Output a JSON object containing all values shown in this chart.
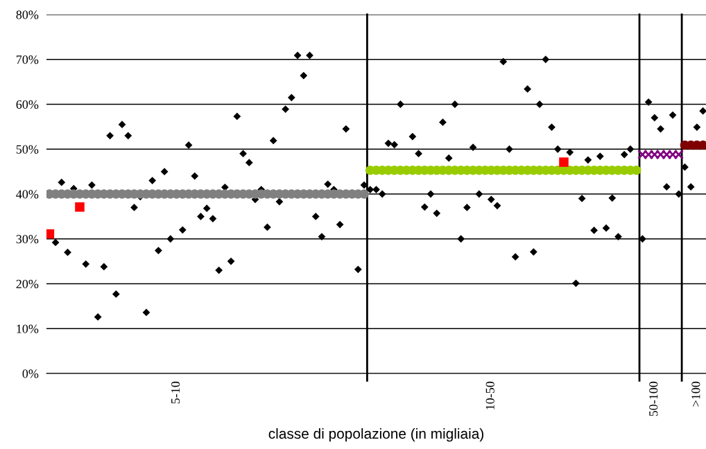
{
  "chart_data": {
    "type": "scatter",
    "xlabel": "classe di popolazione (in migliaia)",
    "categories": [
      null,
      null,
      null,
      null,
      null,
      null,
      null,
      null,
      null,
      null,
      null,
      null,
      null,
      null,
      null,
      null,
      null,
      null,
      null,
      null,
      null,
      "5-10",
      null,
      null,
      null,
      null,
      null,
      null,
      null,
      null,
      null,
      null,
      null,
      null,
      null,
      null,
      null,
      null,
      null,
      null,
      null,
      null,
      null,
      null,
      null,
      null,
      null,
      null,
      null,
      null,
      null,
      null,
      null,
      null,
      null,
      null,
      null,
      null,
      null,
      null,
      null,
      null,
      null,
      null,
      null,
      null,
      null,
      null,
      null,
      null,
      null,
      null,
      null,
      "10-50",
      null,
      null,
      null,
      null,
      null,
      null,
      null,
      null,
      null,
      null,
      null,
      null,
      null,
      null,
      null,
      null,
      null,
      null,
      null,
      null,
      null,
      null,
      null,
      null,
      null,
      null,
      "50-100",
      null,
      null,
      null,
      null,
      null,
      null,
      ">100",
      null
    ],
    "ylim": [
      0,
      80
    ],
    "yticks": [
      {
        "value": 0,
        "label": "0%"
      },
      {
        "value": 10,
        "label": "10%"
      },
      {
        "value": 20,
        "label": "20%"
      },
      {
        "value": 30,
        "label": "30%"
      },
      {
        "value": 40,
        "label": "40%"
      },
      {
        "value": 50,
        "label": "50%"
      },
      {
        "value": 60,
        "label": "60%"
      },
      {
        "value": 70,
        "label": "70%"
      },
      {
        "value": 80,
        "label": "80%"
      }
    ],
    "grid": "y",
    "series": [
      {
        "color": "#808080",
        "marker": "circle",
        "values": [
          40,
          40,
          40,
          40,
          40,
          40,
          40,
          40,
          40,
          40,
          40,
          40,
          40,
          40,
          40,
          40,
          40,
          40,
          40,
          40,
          40,
          40,
          40,
          40,
          40,
          40,
          40,
          40,
          40,
          40,
          40,
          40,
          40,
          40,
          40,
          40,
          40,
          40,
          40,
          40,
          40,
          40,
          40,
          40,
          40,
          40,
          40,
          40,
          40,
          40,
          40,
          40,
          40,
          null,
          null,
          null,
          null,
          null,
          null,
          null,
          null,
          null,
          null,
          null,
          null,
          null,
          null,
          null,
          null,
          null,
          null,
          null,
          null,
          null,
          null,
          null,
          null,
          null,
          null,
          null,
          null,
          null,
          null,
          null,
          null,
          null,
          null,
          null,
          null,
          null,
          null,
          null,
          null,
          null,
          null,
          null,
          null,
          null,
          null,
          null,
          null,
          null,
          null,
          null,
          null,
          null,
          null,
          null,
          null
        ]
      },
      {
        "color": "#99cc00",
        "marker": "circle",
        "values": [
          null,
          null,
          null,
          null,
          null,
          null,
          null,
          null,
          null,
          null,
          null,
          null,
          null,
          null,
          null,
          null,
          null,
          null,
          null,
          null,
          null,
          null,
          null,
          null,
          null,
          null,
          null,
          null,
          null,
          null,
          null,
          null,
          null,
          null,
          null,
          null,
          null,
          null,
          null,
          null,
          null,
          null,
          null,
          null,
          null,
          null,
          null,
          null,
          null,
          null,
          null,
          null,
          null,
          45.3,
          45.3,
          45.3,
          45.3,
          45.3,
          45.3,
          45.3,
          45.3,
          45.3,
          45.3,
          45.3,
          45.3,
          45.3,
          45.3,
          45.3,
          45.3,
          45.3,
          45.3,
          45.3,
          45.3,
          45.3,
          45.3,
          45.3,
          45.3,
          45.3,
          45.3,
          45.3,
          45.3,
          45.3,
          45.3,
          45.3,
          45.3,
          45.3,
          45.3,
          45.3,
          45.3,
          45.3,
          45.3,
          45.3,
          45.3,
          45.3,
          45.3,
          45.3,
          45.3,
          45.3,
          null,
          null,
          null,
          null,
          null,
          null,
          null,
          null,
          null,
          null,
          null
        ]
      },
      {
        "color": "#800080",
        "marker": "cross",
        "values": [
          null,
          null,
          null,
          null,
          null,
          null,
          null,
          null,
          null,
          null,
          null,
          null,
          null,
          null,
          null,
          null,
          null,
          null,
          null,
          null,
          null,
          null,
          null,
          null,
          null,
          null,
          null,
          null,
          null,
          null,
          null,
          null,
          null,
          null,
          null,
          null,
          null,
          null,
          null,
          null,
          null,
          null,
          null,
          null,
          null,
          null,
          null,
          null,
          null,
          null,
          null,
          null,
          null,
          null,
          null,
          null,
          null,
          null,
          null,
          null,
          null,
          null,
          null,
          null,
          null,
          null,
          null,
          null,
          null,
          null,
          null,
          null,
          null,
          null,
          null,
          null,
          null,
          null,
          null,
          null,
          null,
          null,
          null,
          null,
          null,
          null,
          null,
          null,
          null,
          null,
          null,
          null,
          null,
          null,
          null,
          null,
          null,
          null,
          48.8,
          48.8,
          48.8,
          48.8,
          48.8,
          48.8,
          48.8,
          null,
          null,
          null,
          null
        ]
      },
      {
        "color": "#800000",
        "marker": "circle",
        "values": [
          null,
          null,
          null,
          null,
          null,
          null,
          null,
          null,
          null,
          null,
          null,
          null,
          null,
          null,
          null,
          null,
          null,
          null,
          null,
          null,
          null,
          null,
          null,
          null,
          null,
          null,
          null,
          null,
          null,
          null,
          null,
          null,
          null,
          null,
          null,
          null,
          null,
          null,
          null,
          null,
          null,
          null,
          null,
          null,
          null,
          null,
          null,
          null,
          null,
          null,
          null,
          null,
          null,
          null,
          null,
          null,
          null,
          null,
          null,
          null,
          null,
          null,
          null,
          null,
          null,
          null,
          null,
          null,
          null,
          null,
          null,
          null,
          null,
          null,
          null,
          null,
          null,
          null,
          null,
          null,
          null,
          null,
          null,
          null,
          null,
          null,
          null,
          null,
          null,
          null,
          null,
          null,
          null,
          null,
          null,
          null,
          null,
          null,
          null,
          null,
          null,
          null,
          null,
          null,
          null,
          50.9,
          50.9,
          50.9,
          50.9
        ]
      },
      {
        "color": "#000000",
        "marker": "diamond",
        "values": [
          null,
          29.2,
          42.6,
          27.0,
          41.2,
          null,
          24.4,
          42.0,
          12.6,
          23.8,
          53.0,
          17.7,
          55.5,
          53.0,
          37.0,
          39.4,
          13.6,
          43.0,
          27.4,
          45.0,
          30.0,
          null,
          32.0,
          50.9,
          44.0,
          35.0,
          36.8,
          34.5,
          23.0,
          41.5,
          25.0,
          57.3,
          49.0,
          47.0,
          38.8,
          41.0,
          32.6,
          51.9,
          38.3,
          58.9,
          61.5,
          70.9,
          66.4,
          70.9,
          35.0,
          30.5,
          42.2,
          41.0,
          33.2,
          54.5,
          null,
          23.2,
          42.0,
          41.0,
          41.0,
          40.0,
          51.3,
          51.0,
          60.0,
          null,
          52.8,
          49.0,
          37.1,
          40.0,
          35.7,
          56.0,
          48.0,
          60.0,
          30.0,
          37.0,
          50.4,
          40.0,
          null,
          38.8,
          37.4,
          69.5,
          50.0,
          26.0,
          null,
          63.4,
          27.1,
          60.0,
          70.0,
          54.9,
          50.0,
          null,
          49.3,
          20.1,
          39.0,
          47.6,
          31.9,
          48.4,
          32.4,
          39.1,
          30.5,
          48.8,
          50.0,
          null,
          30.0,
          60.5,
          57.0,
          54.5,
          41.6,
          57.6,
          40.0,
          46.0,
          41.6,
          54.9,
          58.5
        ]
      },
      {
        "color": "#ff0000",
        "marker": "square",
        "values": [
          31.1,
          null,
          null,
          null,
          null,
          37.1,
          null,
          null,
          null,
          null,
          null,
          null,
          null,
          null,
          null,
          null,
          null,
          null,
          null,
          null,
          null,
          null,
          null,
          null,
          null,
          null,
          null,
          null,
          null,
          null,
          null,
          null,
          null,
          null,
          null,
          null,
          null,
          null,
          null,
          null,
          null,
          null,
          null,
          null,
          null,
          null,
          null,
          null,
          null,
          null,
          null,
          null,
          null,
          null,
          null,
          null,
          null,
          null,
          null,
          null,
          null,
          null,
          null,
          null,
          null,
          null,
          null,
          null,
          null,
          null,
          null,
          null,
          null,
          null,
          null,
          null,
          null,
          null,
          null,
          null,
          null,
          null,
          null,
          null,
          null,
          47.1,
          null,
          null,
          null,
          null,
          null,
          null,
          null,
          null,
          null,
          null,
          null,
          null,
          null,
          null,
          null,
          null,
          null,
          null,
          null,
          null,
          null,
          null,
          null
        ]
      }
    ]
  }
}
